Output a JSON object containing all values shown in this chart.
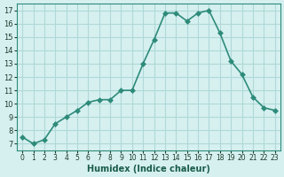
{
  "x": [
    0,
    1,
    2,
    3,
    4,
    5,
    6,
    7,
    8,
    9,
    10,
    11,
    12,
    13,
    14,
    15,
    16,
    17,
    18,
    19,
    20,
    21,
    22,
    23
  ],
  "y": [
    7.5,
    7.0,
    7.3,
    8.5,
    9.0,
    9.5,
    10.1,
    10.3,
    10.3,
    11.0,
    11.0,
    13.0,
    14.8,
    16.8,
    16.8,
    16.2,
    16.8,
    17.0,
    15.3,
    13.2,
    12.2,
    10.5,
    9.7,
    9.5
  ],
  "line_color": "#2e8b7a",
  "marker": "D",
  "marker_size": 3,
  "bg_color": "#d6f0f0",
  "grid_color": "#b0d8d8",
  "xlabel": "Humidex (Indice chaleur)",
  "ylim": [
    6.5,
    17.5
  ],
  "xlim": [
    -0.5,
    23.5
  ],
  "yticks": [
    7,
    8,
    9,
    10,
    11,
    12,
    13,
    14,
    15,
    16,
    17
  ],
  "xticks": [
    0,
    1,
    2,
    3,
    4,
    5,
    6,
    7,
    8,
    9,
    10,
    11,
    12,
    13,
    14,
    15,
    16,
    17,
    18,
    19,
    20,
    21,
    22,
    23
  ]
}
